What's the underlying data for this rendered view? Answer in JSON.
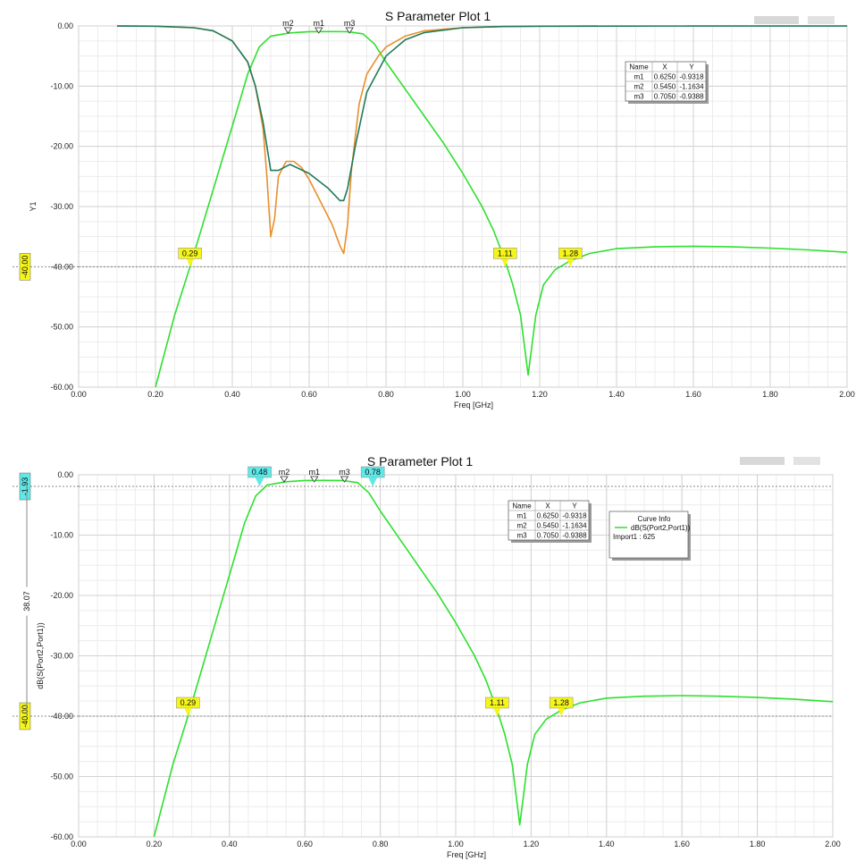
{
  "colors": {
    "s21": "#2ee02e",
    "s11": "#e8902a",
    "s22": "#1f7a5a",
    "flag_yellow": "#f5f51a",
    "flag_cyan": "#5fe8e8"
  },
  "chart_data": [
    {
      "type": "line",
      "title": "S Parameter Plot 1",
      "xlabel": "Freq [GHz]",
      "ylabel": "Y1",
      "xlim": [
        0,
        2
      ],
      "ylim": [
        -60,
        0
      ],
      "xticks": [
        "0.00",
        "0.20",
        "0.40",
        "0.60",
        "0.80",
        "1.00",
        "1.20",
        "1.40",
        "1.60",
        "1.80",
        "2.00"
      ],
      "yticks": [
        "0.00",
        "-10.00",
        "-20.00",
        "-30.00",
        "-40.00",
        "-50.00",
        "-60.00"
      ],
      "grid": true,
      "series": [
        {
          "key": "s21",
          "x": [
            0.2,
            0.25,
            0.29,
            0.33,
            0.37,
            0.41,
            0.44,
            0.47,
            0.5,
            0.55,
            0.6,
            0.65,
            0.7,
            0.74,
            0.77,
            0.8,
            0.85,
            0.9,
            0.95,
            1.0,
            1.05,
            1.08,
            1.11,
            1.13,
            1.15,
            1.16,
            1.17,
            1.18,
            1.19,
            1.21,
            1.24,
            1.28,
            1.33,
            1.4,
            1.5,
            1.6,
            1.7,
            1.8,
            1.9,
            2.0
          ],
          "y": [
            -60,
            -48,
            -40,
            -31.5,
            -23,
            -14.5,
            -8,
            -3.5,
            -1.7,
            -1.16,
            -0.95,
            -0.93,
            -0.95,
            -1.3,
            -3,
            -6,
            -10.5,
            -15,
            -19.5,
            -24.5,
            -30,
            -34,
            -39,
            -43,
            -48,
            -53,
            -58,
            -53,
            -48,
            -43,
            -40.5,
            -39,
            -37.8,
            -37,
            -36.7,
            -36.6,
            -36.7,
            -36.9,
            -37.2,
            -37.6
          ]
        },
        {
          "key": "s11",
          "x": [
            0.1,
            0.2,
            0.3,
            0.35,
            0.4,
            0.44,
            0.46,
            0.48,
            0.49,
            0.5,
            0.51,
            0.52,
            0.54,
            0.56,
            0.58,
            0.6,
            0.62,
            0.64,
            0.66,
            0.68,
            0.69,
            0.7,
            0.71,
            0.73,
            0.75,
            0.78,
            0.8,
            0.85,
            0.9,
            1.0,
            1.1,
            1.2,
            1.35
          ],
          "y": [
            -0.02,
            -0.05,
            -0.3,
            -0.8,
            -2.5,
            -6,
            -10,
            -17,
            -25,
            -35,
            -32,
            -25,
            -22.5,
            -22.5,
            -23.5,
            -25.5,
            -28,
            -30.5,
            -33,
            -36.5,
            -37.8,
            -33,
            -24,
            -13,
            -8,
            -5,
            -3.5,
            -1.7,
            -0.8,
            -0.3,
            -0.1,
            -0.05,
            -0.02
          ]
        },
        {
          "key": "s22",
          "x": [
            0.1,
            0.2,
            0.3,
            0.35,
            0.4,
            0.44,
            0.46,
            0.48,
            0.49,
            0.5,
            0.52,
            0.55,
            0.6,
            0.65,
            0.68,
            0.69,
            0.7,
            0.72,
            0.75,
            0.8,
            0.85,
            0.9,
            1.0,
            1.1,
            1.2,
            1.4,
            1.6,
            1.8,
            2.0
          ],
          "y": [
            -0.02,
            -0.05,
            -0.3,
            -0.8,
            -2.5,
            -6,
            -10,
            -16,
            -20,
            -24,
            -24,
            -23,
            -24.5,
            -27,
            -29,
            -29,
            -27,
            -20,
            -11,
            -5,
            -2.3,
            -1.1,
            -0.3,
            -0.1,
            -0.05,
            -0.03,
            -0.02,
            -0.02,
            -0.02
          ]
        }
      ],
      "ref_line": {
        "y": -40,
        "label": "-40.00"
      },
      "flags": [
        {
          "x": 0.29,
          "label": "0.29"
        },
        {
          "x": 1.11,
          "label": "1.11"
        },
        {
          "x": 1.28,
          "label": "1.28"
        }
      ],
      "markers": [
        {
          "name": "m2",
          "x": 0.545
        },
        {
          "name": "m1",
          "x": 0.625
        },
        {
          "name": "m3",
          "x": 0.705
        }
      ],
      "marker_table": {
        "headers": [
          "Name",
          "X",
          "Y"
        ],
        "rows": [
          [
            "m1",
            "0.6250",
            "-0.9318"
          ],
          [
            "m2",
            "0.5450",
            "-1.1634"
          ],
          [
            "m3",
            "0.7050",
            "-0.9388"
          ]
        ]
      }
    },
    {
      "type": "line",
      "title": "S Parameter Plot 1",
      "xlabel": "Freq [GHz]",
      "ylabel": "dB(S(Port2,Port1))",
      "xlim": [
        0,
        2
      ],
      "ylim": [
        -60,
        0
      ],
      "xticks": [
        "0.00",
        "0.20",
        "0.40",
        "0.60",
        "0.80",
        "1.00",
        "1.20",
        "1.40",
        "1.60",
        "1.80",
        "2.00"
      ],
      "yticks": [
        "0.00",
        "-10.00",
        "-20.00",
        "-30.00",
        "-40.00",
        "-50.00",
        "-60.00"
      ],
      "grid": true,
      "series": [
        {
          "key": "s21",
          "x": [
            0.2,
            0.25,
            0.29,
            0.33,
            0.37,
            0.41,
            0.44,
            0.47,
            0.5,
            0.55,
            0.6,
            0.65,
            0.7,
            0.74,
            0.77,
            0.8,
            0.85,
            0.9,
            0.95,
            1.0,
            1.05,
            1.08,
            1.11,
            1.13,
            1.15,
            1.16,
            1.17,
            1.18,
            1.19,
            1.21,
            1.24,
            1.28,
            1.33,
            1.4,
            1.5,
            1.6,
            1.7,
            1.8,
            1.9,
            2.0
          ],
          "y": [
            -60,
            -48,
            -40,
            -31.5,
            -23,
            -14.5,
            -8,
            -3.5,
            -1.7,
            -1.16,
            -0.95,
            -0.93,
            -0.95,
            -1.3,
            -3,
            -6,
            -10.5,
            -15,
            -19.5,
            -24.5,
            -30,
            -34,
            -39,
            -43,
            -48,
            -53,
            -58,
            -53,
            -48,
            -43,
            -40.5,
            -39,
            -37.8,
            -37,
            -36.7,
            -36.6,
            -36.7,
            -36.9,
            -37.2,
            -37.6
          ]
        }
      ],
      "ref_lines": [
        {
          "y": -1.93,
          "label": "-1.93"
        },
        {
          "y": -40,
          "label": "-40.00"
        }
      ],
      "delta_label": "38.07",
      "flags": [
        {
          "x": 0.29,
          "label": "0.29"
        },
        {
          "x": 1.11,
          "label": "1.11"
        },
        {
          "x": 1.28,
          "label": "1.28"
        }
      ],
      "cyan_flags": [
        {
          "x": 0.48,
          "label": "0.48"
        },
        {
          "x": 0.78,
          "label": "0.78"
        }
      ],
      "markers": [
        {
          "name": "m2",
          "x": 0.545
        },
        {
          "name": "m1",
          "x": 0.625
        },
        {
          "name": "m3",
          "x": 0.705
        }
      ],
      "marker_table": {
        "headers": [
          "Name",
          "X",
          "Y"
        ],
        "rows": [
          [
            "m1",
            "0.6250",
            "-0.9318"
          ],
          [
            "m2",
            "0.5450",
            "-1.1634"
          ],
          [
            "m3",
            "0.7050",
            "-0.9388"
          ]
        ]
      },
      "curve_info": {
        "title": "Curve Info",
        "entry": "dB(S(Port2,Port1))",
        "sub": "Import1 : 625"
      }
    }
  ]
}
